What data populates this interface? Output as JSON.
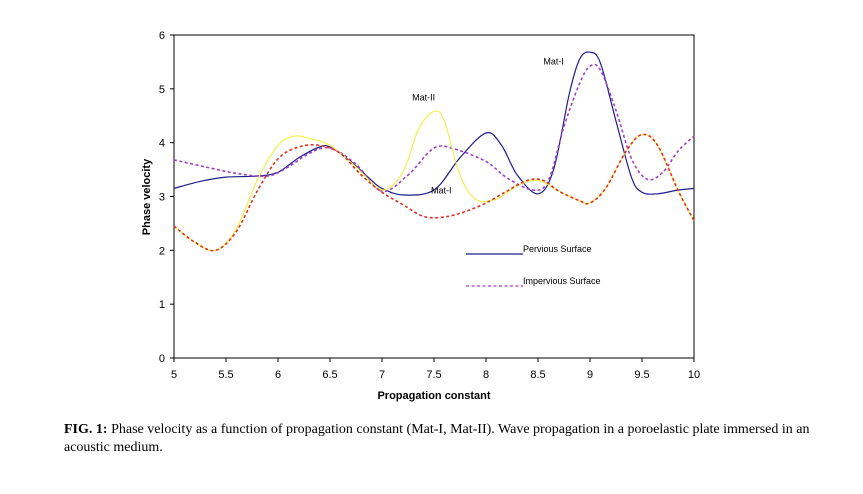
{
  "chart_data": {
    "type": "line",
    "xlabel": "Propagation constant",
    "ylabel": "Phase velocity",
    "xlim": [
      5,
      10
    ],
    "ylim": [
      0,
      6
    ],
    "xticks": [
      "5",
      "5.5",
      "6",
      "6.5",
      "7",
      "7.5",
      "8",
      "8.5",
      "9",
      "9.5",
      "10"
    ],
    "yticks": [
      "0",
      "1",
      "2",
      "3",
      "4",
      "5",
      "6"
    ],
    "grid": false,
    "series": [
      {
        "name": "Mat-I",
        "line": "solid",
        "color": "#1f1f8c",
        "x": [
          5.0,
          5.25,
          5.5,
          5.8,
          6.0,
          6.2,
          6.4,
          6.5,
          6.7,
          6.9,
          7.0,
          7.2,
          7.5,
          7.75,
          8.0,
          8.15,
          8.3,
          8.5,
          8.65,
          8.8,
          8.9,
          9.0,
          9.1,
          9.25,
          9.4,
          9.5,
          9.65,
          9.85,
          10.0
        ],
        "y": [
          3.15,
          3.28,
          3.36,
          3.38,
          3.45,
          3.72,
          3.92,
          3.92,
          3.65,
          3.3,
          3.15,
          3.03,
          3.12,
          3.72,
          4.18,
          3.95,
          3.4,
          3.05,
          3.5,
          4.9,
          5.55,
          5.68,
          5.48,
          4.4,
          3.35,
          3.08,
          3.05,
          3.12,
          3.15
        ]
      },
      {
        "name": "Mat-I",
        "line": "dashed",
        "color": "#a040c8",
        "x": [
          5.0,
          5.3,
          5.6,
          5.9,
          6.1,
          6.3,
          6.5,
          6.75,
          7.0,
          7.25,
          7.5,
          7.7,
          8.0,
          8.2,
          8.45,
          8.6,
          8.75,
          8.9,
          9.0,
          9.1,
          9.25,
          9.4,
          9.55,
          9.7,
          9.85,
          10.0
        ],
        "y": [
          3.68,
          3.55,
          3.43,
          3.38,
          3.55,
          3.8,
          3.9,
          3.6,
          3.1,
          3.4,
          3.9,
          3.88,
          3.65,
          3.35,
          3.12,
          3.3,
          4.3,
          5.1,
          5.42,
          5.35,
          4.6,
          3.7,
          3.32,
          3.45,
          3.85,
          4.12
        ]
      },
      {
        "name": "Mat-II",
        "line": "solid",
        "color": "#f0f050",
        "x": [
          5.0,
          5.2,
          5.4,
          5.6,
          5.8,
          6.0,
          6.15,
          6.3,
          6.5,
          6.75,
          7.0,
          7.2,
          7.35,
          7.5,
          7.6,
          7.75,
          7.9,
          8.1,
          8.3,
          8.5,
          8.7,
          8.9,
          9.0,
          9.15,
          9.35,
          9.5,
          9.65,
          9.85,
          10.0
        ],
        "y": [
          2.45,
          2.15,
          2.0,
          2.4,
          3.3,
          3.95,
          4.12,
          4.08,
          3.95,
          3.55,
          3.12,
          3.45,
          4.25,
          4.58,
          4.4,
          3.4,
          2.95,
          2.95,
          3.2,
          3.3,
          3.1,
          2.92,
          2.88,
          3.15,
          3.85,
          4.15,
          3.95,
          3.1,
          2.55
        ]
      },
      {
        "name": "Mat-II",
        "line": "dashed",
        "color": "#e03020",
        "x": [
          5.0,
          5.2,
          5.4,
          5.6,
          5.8,
          6.0,
          6.2,
          6.4,
          6.6,
          6.8,
          7.0,
          7.2,
          7.4,
          7.6,
          7.8,
          8.0,
          8.2,
          8.4,
          8.55,
          8.7,
          8.9,
          9.0,
          9.15,
          9.35,
          9.5,
          9.65,
          9.85,
          10.0
        ],
        "y": [
          2.45,
          2.15,
          2.0,
          2.35,
          3.1,
          3.7,
          3.92,
          3.95,
          3.8,
          3.4,
          3.08,
          2.85,
          2.63,
          2.62,
          2.72,
          2.88,
          3.1,
          3.3,
          3.3,
          3.1,
          2.92,
          2.88,
          3.15,
          3.85,
          4.15,
          3.95,
          3.1,
          2.55
        ]
      }
    ],
    "annotations": [
      {
        "text": "Mat-I",
        "x": 8.65,
        "y": 5.45
      },
      {
        "text": "Mat-II",
        "x": 7.4,
        "y": 4.78
      },
      {
        "text": "Mat-I",
        "x": 7.57,
        "y": 3.06
      }
    ],
    "legend": {
      "placement": "inside lower-right",
      "items": [
        {
          "label": "Pervious Surface",
          "line": "solid",
          "color": "#1f1f8c"
        },
        {
          "label": "Impervious Surface",
          "line": "dashed",
          "color": "#a040c8"
        }
      ]
    }
  },
  "caption": {
    "label": "FIG.  1:",
    "text": " Phase velocity as a function of propagation constant (Mat-I, Mat-II). Wave propagation in a poroelastic plate immersed in an acoustic medium."
  }
}
